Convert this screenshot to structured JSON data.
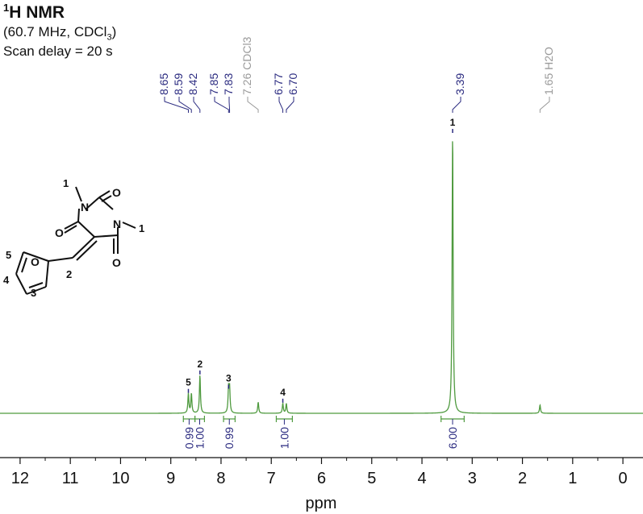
{
  "header": {
    "title_sup": "1",
    "title_main": "H NMR",
    "subtitle_a": "(60.7 MHz, CDCl",
    "subtitle_sub": "3",
    "subtitle_b": ")",
    "scan_delay": "Scan delay = 20 s"
  },
  "chart_data": {
    "type": "line",
    "xlabel": "ppm",
    "x_reversed": true,
    "xlim": [
      12.4,
      -0.4
    ],
    "x_ticks": [
      12,
      11,
      10,
      9,
      8,
      7,
      6,
      5,
      4,
      3,
      2,
      1,
      0
    ],
    "y_axis_shown": false,
    "grid": false,
    "line_color": "#4f9a3f",
    "peaks": [
      {
        "ppm": 8.65,
        "height": 0.07,
        "label": "5"
      },
      {
        "ppm": 8.59,
        "height": 0.07,
        "label": ""
      },
      {
        "ppm": 8.42,
        "height": 0.136,
        "label": "2"
      },
      {
        "ppm": 7.85,
        "height": 0.085,
        "label": "3"
      },
      {
        "ppm": 7.83,
        "height": 0.085,
        "label": ""
      },
      {
        "ppm": 7.26,
        "height": 0.04,
        "label": ""
      },
      {
        "ppm": 6.77,
        "height": 0.035,
        "label": "4"
      },
      {
        "ppm": 6.7,
        "height": 0.035,
        "label": ""
      },
      {
        "ppm": 3.39,
        "height": 1.0,
        "label": "1"
      },
      {
        "ppm": 1.65,
        "height": 0.03,
        "label": ""
      }
    ],
    "peak_picks": [
      {
        "label": "8.65",
        "ppm": 8.65,
        "color": "#2b2b80"
      },
      {
        "label": "8.59",
        "ppm": 8.59,
        "color": "#2b2b80"
      },
      {
        "label": "8.42",
        "ppm": 8.42,
        "color": "#2b2b80"
      },
      {
        "label": "7.85",
        "ppm": 7.85,
        "color": "#2b2b80"
      },
      {
        "label": "7.83",
        "ppm": 7.83,
        "color": "#2b2b80"
      },
      {
        "label": "7.26 CDCl3",
        "ppm": 7.26,
        "color": "#9a9a9a"
      },
      {
        "label": "6.77",
        "ppm": 6.77,
        "color": "#2b2b80"
      },
      {
        "label": "6.70",
        "ppm": 6.7,
        "color": "#2b2b80"
      },
      {
        "label": "3.39",
        "ppm": 3.39,
        "color": "#2b2b80"
      },
      {
        "label": "1.65 H2O",
        "ppm": 1.65,
        "color": "#9a9a9a"
      }
    ],
    "integrals": [
      {
        "from": 8.75,
        "to": 8.52,
        "value": "0.99"
      },
      {
        "from": 8.52,
        "to": 8.33,
        "value": "1.00"
      },
      {
        "from": 7.95,
        "to": 7.72,
        "value": "0.99"
      },
      {
        "from": 6.9,
        "to": 6.58,
        "value": "1.00"
      },
      {
        "from": 3.62,
        "to": 3.16,
        "value": "6.00"
      }
    ],
    "annotation_color": "#2b2b80",
    "impurity_color": "#9a9a9a"
  },
  "structure": {
    "atoms": {
      "O": "O",
      "N": "N"
    },
    "numbers": [
      "1",
      "1",
      "2",
      "3",
      "4",
      "5"
    ]
  }
}
